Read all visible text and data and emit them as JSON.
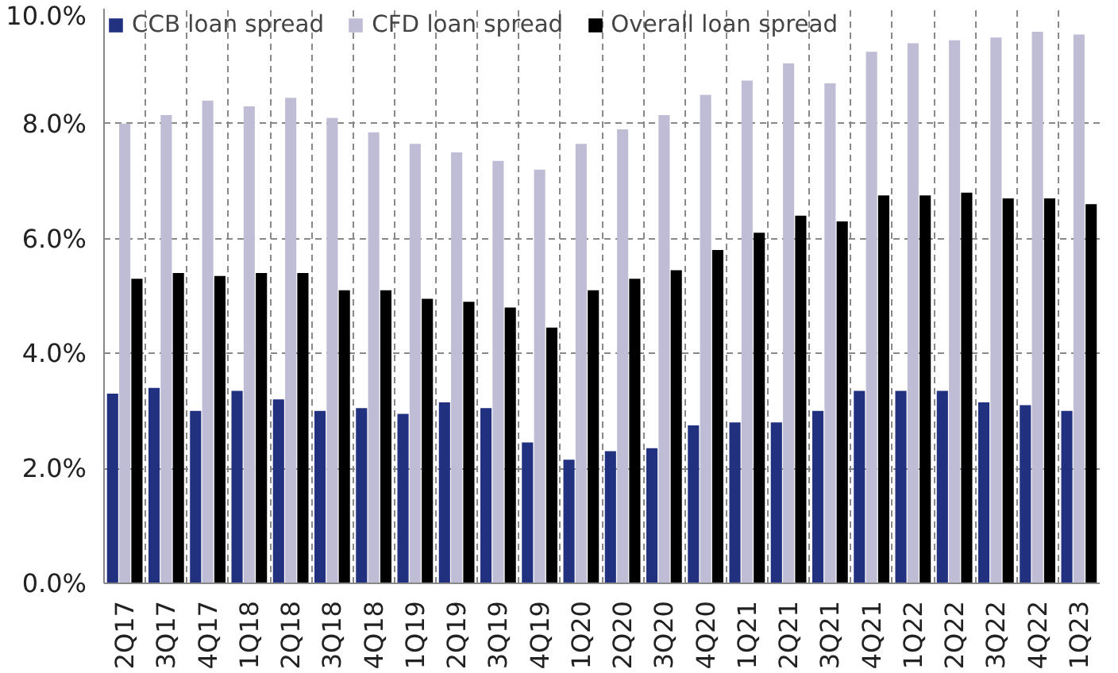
{
  "chart_data": {
    "type": "bar",
    "categories": [
      "2Q17",
      "3Q17",
      "4Q17",
      "1Q18",
      "2Q18",
      "3Q18",
      "4Q18",
      "1Q19",
      "2Q19",
      "3Q19",
      "4Q19",
      "1Q20",
      "2Q20",
      "3Q20",
      "4Q20",
      "1Q21",
      "2Q21",
      "3Q21",
      "4Q21",
      "1Q22",
      "2Q22",
      "3Q22",
      "4Q22",
      "1Q23"
    ],
    "series": [
      {
        "name": "CCB loan spread",
        "color": "#21307f",
        "values": [
          3.3,
          3.4,
          3.0,
          3.35,
          3.2,
          3.0,
          3.05,
          2.95,
          3.15,
          3.05,
          2.45,
          2.15,
          2.3,
          2.35,
          2.75,
          2.8,
          2.8,
          3.0,
          3.35,
          3.35,
          3.35,
          3.15,
          3.1,
          3.0
        ]
      },
      {
        "name": "CFD loan spread",
        "color": "#bfbdd5",
        "values": [
          8.0,
          8.15,
          8.4,
          8.3,
          8.45,
          8.1,
          7.85,
          7.65,
          7.5,
          7.35,
          7.2,
          7.65,
          7.9,
          8.15,
          8.5,
          8.75,
          9.05,
          8.7,
          9.25,
          9.4,
          9.45,
          9.5,
          9.6,
          9.55
        ]
      },
      {
        "name": "Overall loan spread",
        "color": "#000000",
        "values": [
          5.3,
          5.4,
          5.35,
          5.4,
          5.4,
          5.1,
          5.1,
          4.95,
          4.9,
          4.8,
          4.45,
          5.1,
          5.3,
          5.45,
          5.8,
          6.1,
          6.4,
          6.3,
          6.75,
          6.75,
          6.8,
          6.7,
          6.7,
          6.6
        ]
      }
    ],
    "ylim": [
      0,
      10
    ],
    "yticks": [
      {
        "value": 0,
        "label": "0.0%"
      },
      {
        "value": 2,
        "label": "2.0%"
      },
      {
        "value": 4,
        "label": "4.0%"
      },
      {
        "value": 6,
        "label": "6.0%"
      },
      {
        "value": 8,
        "label": "8.0%"
      },
      {
        "value": 10,
        "label": "10.0%"
      }
    ],
    "grid": true,
    "legend": "top"
  }
}
